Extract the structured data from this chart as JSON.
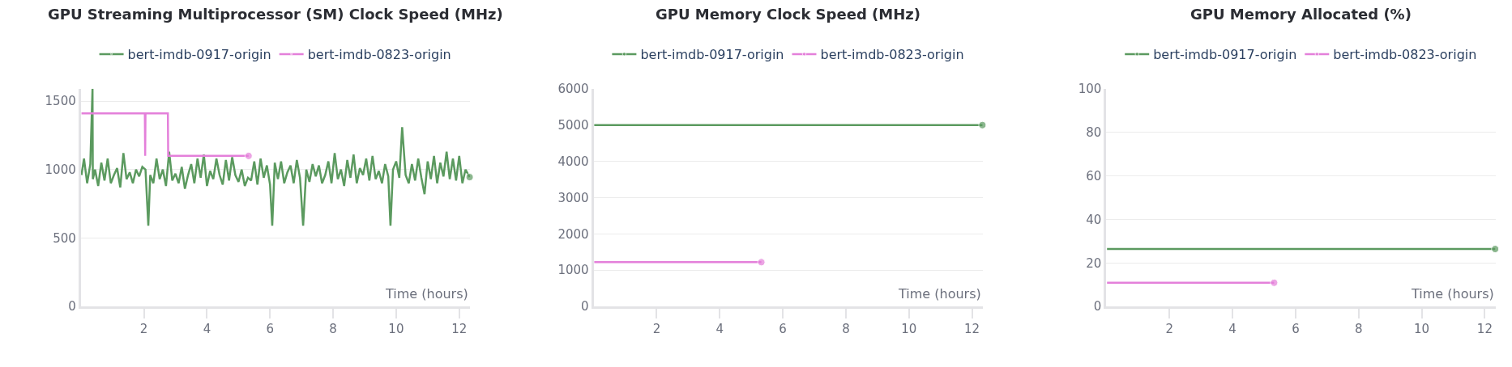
{
  "chart_data": [
    {
      "type": "line",
      "title": "GPU Streaming Multiprocessor (SM) Clock Speed (MHz)",
      "xlabel": "Time (hours)",
      "xlim": [
        0,
        12.35
      ],
      "xticks": [
        2,
        4,
        6,
        8,
        10,
        12
      ],
      "ylim": [
        0,
        1590
      ],
      "yticks": [
        0,
        500,
        1000,
        1500
      ],
      "grid": "y",
      "legend": "top",
      "series": [
        {
          "name": "bert-imdb-0917-origin",
          "color": "#5b9a5f",
          "x": [
            0.02,
            0.1,
            0.2,
            0.3,
            0.37,
            0.38,
            0.45,
            0.55,
            0.65,
            0.75,
            0.85,
            0.95,
            1.05,
            1.15,
            1.25,
            1.35,
            1.45,
            1.55,
            1.65,
            1.75,
            1.85,
            1.95,
            2.05,
            2.14,
            2.2,
            2.3,
            2.4,
            2.5,
            2.6,
            2.7,
            2.8,
            2.9,
            3.0,
            3.1,
            3.2,
            3.3,
            3.4,
            3.5,
            3.6,
            3.7,
            3.8,
            3.9,
            4.0,
            4.1,
            4.2,
            4.3,
            4.4,
            4.5,
            4.6,
            4.7,
            4.8,
            4.9,
            5.0,
            5.1,
            5.2,
            5.3,
            5.4,
            5.5,
            5.6,
            5.7,
            5.8,
            5.9,
            6.0,
            6.07,
            6.15,
            6.25,
            6.35,
            6.45,
            6.55,
            6.65,
            6.75,
            6.85,
            6.95,
            7.05,
            7.15,
            7.25,
            7.35,
            7.45,
            7.55,
            7.65,
            7.75,
            7.85,
            7.95,
            8.05,
            8.15,
            8.25,
            8.35,
            8.45,
            8.55,
            8.65,
            8.75,
            8.85,
            8.95,
            9.05,
            9.15,
            9.25,
            9.35,
            9.45,
            9.55,
            9.65,
            9.75,
            9.82,
            9.9,
            10.0,
            10.1,
            10.19,
            10.3,
            10.4,
            10.5,
            10.6,
            10.7,
            10.8,
            10.9,
            11.0,
            11.1,
            11.2,
            11.3,
            11.4,
            11.5,
            11.6,
            11.7,
            11.8,
            11.9,
            12.0,
            12.1,
            12.2,
            12.33
          ],
          "values": [
            960,
            1080,
            900,
            1040,
            1590,
            930,
            1000,
            880,
            1050,
            920,
            1080,
            900,
            960,
            1010,
            870,
            1120,
            930,
            980,
            900,
            1000,
            950,
            1020,
            1000,
            590,
            960,
            900,
            1080,
            930,
            1000,
            880,
            1130,
            920,
            970,
            900,
            1020,
            860,
            960,
            1040,
            900,
            1080,
            940,
            1110,
            880,
            990,
            930,
            1080,
            960,
            890,
            1070,
            920,
            1090,
            960,
            910,
            1000,
            880,
            940,
            920,
            1060,
            890,
            1080,
            940,
            1030,
            890,
            590,
            1050,
            930,
            1060,
            900,
            980,
            1030,
            900,
            1070,
            940,
            590,
            1000,
            910,
            1040,
            950,
            1030,
            900,
            960,
            1060,
            900,
            1120,
            930,
            1000,
            880,
            1070,
            940,
            1110,
            900,
            1010,
            960,
            1080,
            920,
            1100,
            930,
            990,
            900,
            1040,
            950,
            590,
            1000,
            1060,
            940,
            1310,
            960,
            900,
            1040,
            920,
            1080,
            940,
            820,
            1060,
            930,
            1100,
            900,
            1050,
            950,
            1130,
            930,
            1080,
            920,
            1100,
            900,
            1000,
            945
          ]
        },
        {
          "name": "bert-imdb-0823-origin",
          "color": "#e480da",
          "x": [
            0.02,
            2.03,
            2.04,
            2.05,
            2.76,
            2.77,
            5.32
          ],
          "values": [
            1410,
            1410,
            1100,
            1410,
            1410,
            1100,
            1100
          ]
        }
      ]
    },
    {
      "type": "line",
      "title": "GPU Memory Clock Speed (MHz)",
      "xlabel": "Time (hours)",
      "xlim": [
        0,
        12.35
      ],
      "xticks": [
        2,
        4,
        6,
        8,
        10,
        12
      ],
      "ylim": [
        0,
        6000
      ],
      "yticks": [
        0,
        1000,
        2000,
        3000,
        4000,
        5000,
        6000
      ],
      "grid": "y",
      "legend": "top",
      "series": [
        {
          "name": "bert-imdb-0917-origin",
          "color": "#5b9a5f",
          "x": [
            0.02,
            12.33
          ],
          "values": [
            5000,
            5000
          ]
        },
        {
          "name": "bert-imdb-0823-origin",
          "color": "#e480da",
          "x": [
            0.02,
            5.32
          ],
          "values": [
            1220,
            1220
          ]
        }
      ]
    },
    {
      "type": "line",
      "title": "GPU Memory Allocated (%)",
      "xlabel": "Time (hours)",
      "xlim": [
        0,
        12.35
      ],
      "xticks": [
        2,
        4,
        6,
        8,
        10,
        12
      ],
      "ylim": [
        0,
        100
      ],
      "yticks": [
        0,
        20,
        40,
        60,
        80,
        100
      ],
      "grid": "y",
      "legend": "top",
      "series": [
        {
          "name": "bert-imdb-0917-origin",
          "color": "#5b9a5f",
          "x": [
            0.02,
            12.33
          ],
          "values": [
            26.4,
            26.4
          ]
        },
        {
          "name": "bert-imdb-0823-origin",
          "color": "#e480da",
          "x": [
            0.02,
            5.32
          ],
          "values": [
            10.9,
            10.9
          ]
        }
      ]
    }
  ]
}
